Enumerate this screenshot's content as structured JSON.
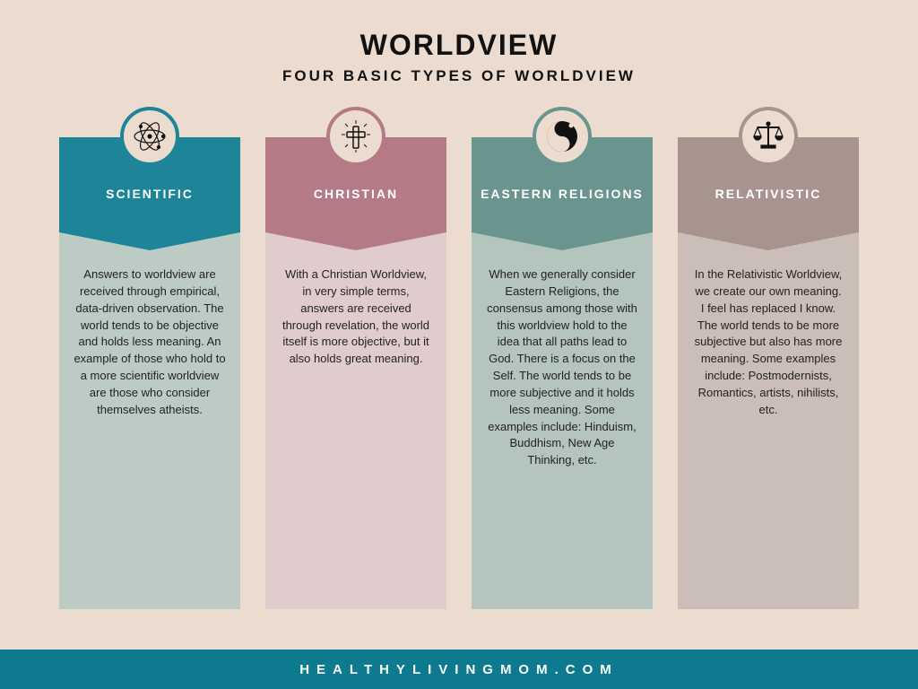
{
  "title": "WORLDVIEW",
  "subtitle": "FOUR BASIC TYPES OF WORLDVIEW",
  "footer": "HEALTHYLIVINGMOM.COM",
  "footer_bg": "#0e7a8f",
  "background": "#ecdccf",
  "columns": [
    {
      "icon": "atom",
      "header": "SCIENTIFIC",
      "header_bg": "#1e8599",
      "body_bg": "#bccbc4",
      "circle_border": "#1e8599",
      "body": "Answers to worldview are received through empirical, data-driven observation. The world tends to be objective and holds less meaning. An example of those who hold to a more scientific worldview are those who consider themselves atheists."
    },
    {
      "icon": "cross",
      "header": "CHRISTIAN",
      "header_bg": "#b47a86",
      "body_bg": "#e1cccd",
      "circle_border": "#b47a86",
      "body": "With a Christian Worldview, in very simple terms, answers are received through revelation, the world itself is more objective, but it also holds great meaning."
    },
    {
      "icon": "yinyang",
      "header": "EASTERN RELIGIONS",
      "header_bg": "#6a958f",
      "body_bg": "#b4c5bd",
      "circle_border": "#6a958f",
      "body": "When we generally consider Eastern Religions, the consensus among those with this worldview hold to the idea that all paths lead to God. There is a focus on the Self. The world tends to be more subjective and it holds less meaning. Some examples include: Hinduism, Buddhism, New Age Thinking, etc."
    },
    {
      "icon": "scales",
      "header": "RELATIVISTIC",
      "header_bg": "#a8948e",
      "body_bg": "#cbbdb7",
      "circle_border": "#a8948e",
      "body": "In the Relativistic Worldview, we create our own meaning. I feel has replaced I know. The world tends to be more subjective but also has more meaning. Some examples include: Postmodernists, Romantics, artists, nihilists, etc."
    }
  ]
}
